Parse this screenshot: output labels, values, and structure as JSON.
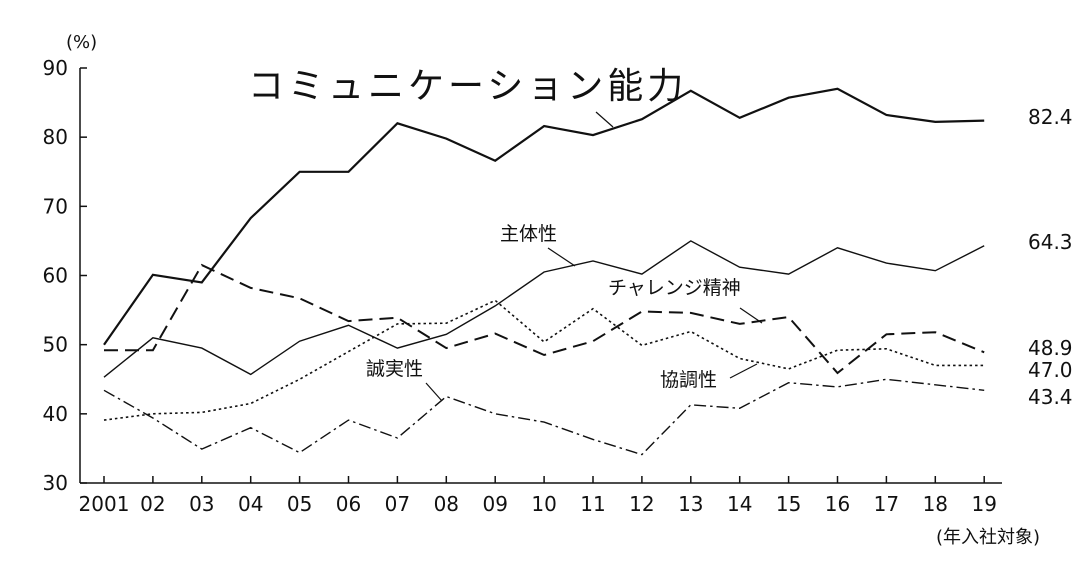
{
  "chart_data": {
    "type": "line",
    "title": "",
    "xlabel": "(年入社対象)",
    "ylabel": "(%)",
    "ylim": [
      30,
      90
    ],
    "yticks": [
      "30",
      "40",
      "50",
      "60",
      "70",
      "80",
      "90"
    ],
    "categories": [
      "2001",
      "02",
      "03",
      "04",
      "05",
      "06",
      "07",
      "08",
      "09",
      "10",
      "11",
      "12",
      "13",
      "14",
      "15",
      "16",
      "17",
      "18",
      "19"
    ],
    "grid": false,
    "legend": "inline labels",
    "series": [
      {
        "name": "コミュニケーション能力",
        "style": "solid-thick",
        "end_label": "82.4",
        "values": [
          50.0,
          60.1,
          59.0,
          68.3,
          75.0,
          75.0,
          82.0,
          79.8,
          76.6,
          81.6,
          80.3,
          82.6,
          86.7,
          82.8,
          85.7,
          87.0,
          83.2,
          82.2,
          82.4
        ]
      },
      {
        "name": "主体性",
        "style": "solid-thin",
        "end_label": "64.3",
        "values": [
          45.3,
          51.0,
          49.5,
          45.7,
          50.5,
          52.8,
          49.5,
          51.5,
          55.6,
          60.5,
          62.1,
          60.2,
          65.0,
          61.2,
          60.2,
          64.0,
          61.8,
          60.7,
          64.3
        ]
      },
      {
        "name": "チャレンジ精神",
        "style": "dashed",
        "end_label": "48.9",
        "values": [
          49.2,
          49.2,
          61.5,
          58.2,
          56.7,
          53.4,
          53.9,
          49.5,
          51.6,
          48.5,
          50.5,
          54.8,
          54.6,
          53.0,
          54.0,
          45.9,
          51.5,
          51.8,
          48.9
        ]
      },
      {
        "name": "協調性",
        "style": "dotted",
        "end_label": "47.0",
        "values": [
          39.1,
          40.0,
          40.2,
          41.5,
          45.0,
          49.0,
          53.0,
          53.1,
          56.4,
          50.4,
          55.2,
          49.9,
          51.9,
          48.0,
          46.5,
          49.2,
          49.4,
          47.0,
          47.0
        ]
      },
      {
        "name": "誠実性",
        "style": "dash-dot",
        "end_label": "43.4",
        "values": [
          43.4,
          39.4,
          34.9,
          38.0,
          34.4,
          39.1,
          36.5,
          42.5,
          40.0,
          38.8,
          36.3,
          34.1,
          41.3,
          40.8,
          44.5,
          43.9,
          45.0,
          44.2,
          43.4
        ]
      }
    ]
  }
}
